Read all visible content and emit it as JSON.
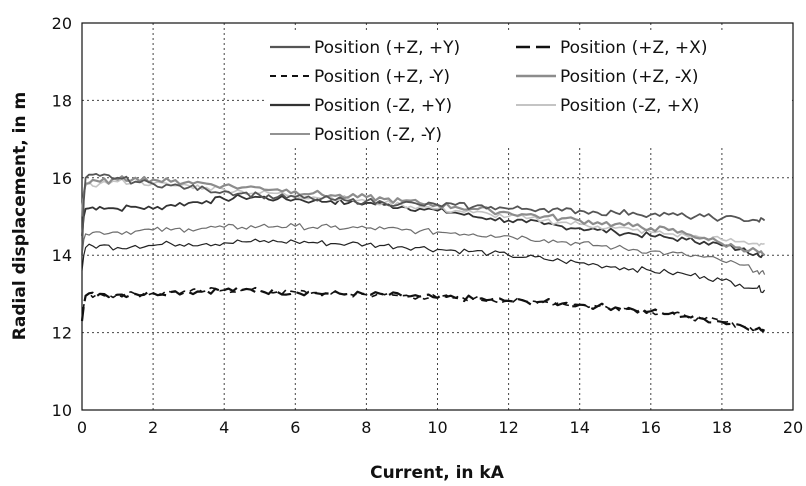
{
  "chart_data": {
    "type": "line",
    "title": "",
    "xlabel": "Current, in kA",
    "ylabel": "Radial displacement, in m",
    "xlim": [
      0,
      20
    ],
    "ylim": [
      10,
      20
    ],
    "xticks": [
      0,
      2,
      4,
      6,
      8,
      10,
      12,
      14,
      16,
      18,
      20
    ],
    "yticks": [
      10,
      12,
      14,
      16,
      18,
      20
    ],
    "grid": true,
    "legend_position": "top-right",
    "x": [
      0,
      0.05,
      0.1,
      0.5,
      1,
      1.5,
      2,
      2.5,
      3,
      3.5,
      4,
      4.5,
      5,
      5.5,
      6,
      6.5,
      7,
      7.5,
      8,
      8.5,
      9,
      9.5,
      10,
      10.5,
      11,
      11.5,
      12,
      12.5,
      13,
      13.5,
      14,
      14.5,
      15,
      15.5,
      16,
      16.5,
      17,
      17.5,
      18,
      18.5,
      19,
      19.2
    ],
    "series": [
      {
        "name": "Position (+Z, +Y)",
        "style": "solid",
        "color": "#555555",
        "width": 1.8,
        "values": [
          14.0,
          15.4,
          16.0,
          16.05,
          16.0,
          15.9,
          15.85,
          15.8,
          15.75,
          15.7,
          15.65,
          15.6,
          15.55,
          15.5,
          15.5,
          15.45,
          15.45,
          15.4,
          15.4,
          15.35,
          15.35,
          15.3,
          15.3,
          15.3,
          15.25,
          15.25,
          15.2,
          15.2,
          15.2,
          15.15,
          15.15,
          15.1,
          15.1,
          15.1,
          15.05,
          15.05,
          15.0,
          15.0,
          14.95,
          14.95,
          14.9,
          14.9
        ]
      },
      {
        "name": "Position (+Z, +X)",
        "style": "longdash",
        "color": "#111111",
        "width": 2.2,
        "values": [
          12.3,
          12.7,
          12.95,
          13.0,
          12.98,
          13.0,
          13.02,
          13.05,
          13.05,
          13.08,
          13.1,
          13.1,
          13.08,
          13.05,
          13.05,
          13.03,
          13.0,
          13.0,
          12.98,
          12.98,
          12.95,
          12.93,
          12.9,
          12.9,
          12.87,
          12.85,
          12.82,
          12.8,
          12.8,
          12.75,
          12.72,
          12.68,
          12.65,
          12.6,
          12.55,
          12.48,
          12.42,
          12.35,
          12.28,
          12.2,
          12.1,
          12.05
        ]
      },
      {
        "name": "Position (+Z, -Y)",
        "style": "shortdash",
        "color": "#111111",
        "width": 1.6,
        "values": [
          12.3,
          12.7,
          12.95,
          13.0,
          12.98,
          13.0,
          13.02,
          13.05,
          13.05,
          13.08,
          13.1,
          13.1,
          13.08,
          13.05,
          13.05,
          13.03,
          13.0,
          13.0,
          12.98,
          12.98,
          12.95,
          12.93,
          12.9,
          12.9,
          12.87,
          12.85,
          12.82,
          12.8,
          12.8,
          12.75,
          12.72,
          12.68,
          12.65,
          12.6,
          12.55,
          12.48,
          12.42,
          12.35,
          12.28,
          12.2,
          12.1,
          12.05
        ]
      },
      {
        "name": "Position (+Z, -X)",
        "style": "solid",
        "color": "#8c8c8c",
        "width": 2.2,
        "values": [
          15.0,
          15.6,
          15.85,
          15.9,
          15.95,
          16.0,
          15.95,
          15.9,
          15.9,
          15.85,
          15.8,
          15.75,
          15.75,
          15.7,
          15.65,
          15.6,
          15.55,
          15.5,
          15.5,
          15.45,
          15.4,
          15.35,
          15.3,
          15.25,
          15.2,
          15.15,
          15.1,
          15.05,
          15.0,
          14.95,
          14.9,
          14.85,
          14.8,
          14.75,
          14.7,
          14.65,
          14.55,
          14.45,
          14.3,
          14.2,
          14.1,
          14.0
        ]
      },
      {
        "name": "Position (-Z, +Y)",
        "style": "solid",
        "color": "#333333",
        "width": 1.8,
        "values": [
          14.5,
          15.0,
          15.2,
          15.25,
          15.2,
          15.25,
          15.2,
          15.3,
          15.35,
          15.4,
          15.45,
          15.5,
          15.5,
          15.45,
          15.45,
          15.4,
          15.4,
          15.35,
          15.35,
          15.3,
          15.25,
          15.2,
          15.15,
          15.1,
          15.0,
          14.95,
          14.9,
          14.85,
          14.8,
          14.75,
          14.7,
          14.65,
          14.6,
          14.55,
          14.5,
          14.45,
          14.4,
          14.35,
          14.25,
          14.15,
          14.05,
          14.0
        ]
      },
      {
        "name": "Position (-Z, +X)",
        "style": "solid",
        "color": "#c4c4c4",
        "width": 1.6,
        "values": [
          15.2,
          15.6,
          15.8,
          15.85,
          15.9,
          15.9,
          15.85,
          15.8,
          15.8,
          15.75,
          15.7,
          15.65,
          15.6,
          15.6,
          15.55,
          15.5,
          15.5,
          15.45,
          15.4,
          15.35,
          15.3,
          15.25,
          15.2,
          15.15,
          15.1,
          15.05,
          15.0,
          14.95,
          14.9,
          14.85,
          14.8,
          14.75,
          14.7,
          14.65,
          14.6,
          14.55,
          14.5,
          14.45,
          14.4,
          14.35,
          14.3,
          14.3
        ]
      },
      {
        "name": "Position (-Z, -Y)",
        "style": "solid",
        "color": "#6e6e6e",
        "width": 1.2,
        "values": [
          14.0,
          14.4,
          14.55,
          14.6,
          14.6,
          14.62,
          14.65,
          14.65,
          14.68,
          14.7,
          14.72,
          14.72,
          14.75,
          14.75,
          14.75,
          14.72,
          14.72,
          14.7,
          14.7,
          14.68,
          14.65,
          14.62,
          14.6,
          14.58,
          14.55,
          14.52,
          14.5,
          14.45,
          14.4,
          14.35,
          14.3,
          14.25,
          14.2,
          14.15,
          14.1,
          14.05,
          14.0,
          13.95,
          13.85,
          13.75,
          13.6,
          13.5
        ]
      },
      {
        "name": "",
        "style": "solid",
        "color": "#222222",
        "width": 1.2,
        "values": [
          13.6,
          14.0,
          14.2,
          14.25,
          14.2,
          14.25,
          14.25,
          14.3,
          14.3,
          14.3,
          14.32,
          14.35,
          14.35,
          14.35,
          14.35,
          14.33,
          14.3,
          14.3,
          14.28,
          14.25,
          14.22,
          14.2,
          14.15,
          14.12,
          14.1,
          14.05,
          14.0,
          13.95,
          13.9,
          13.85,
          13.8,
          13.75,
          13.7,
          13.65,
          13.6,
          13.55,
          13.5,
          13.45,
          13.35,
          13.25,
          13.15,
          13.1
        ]
      }
    ]
  }
}
